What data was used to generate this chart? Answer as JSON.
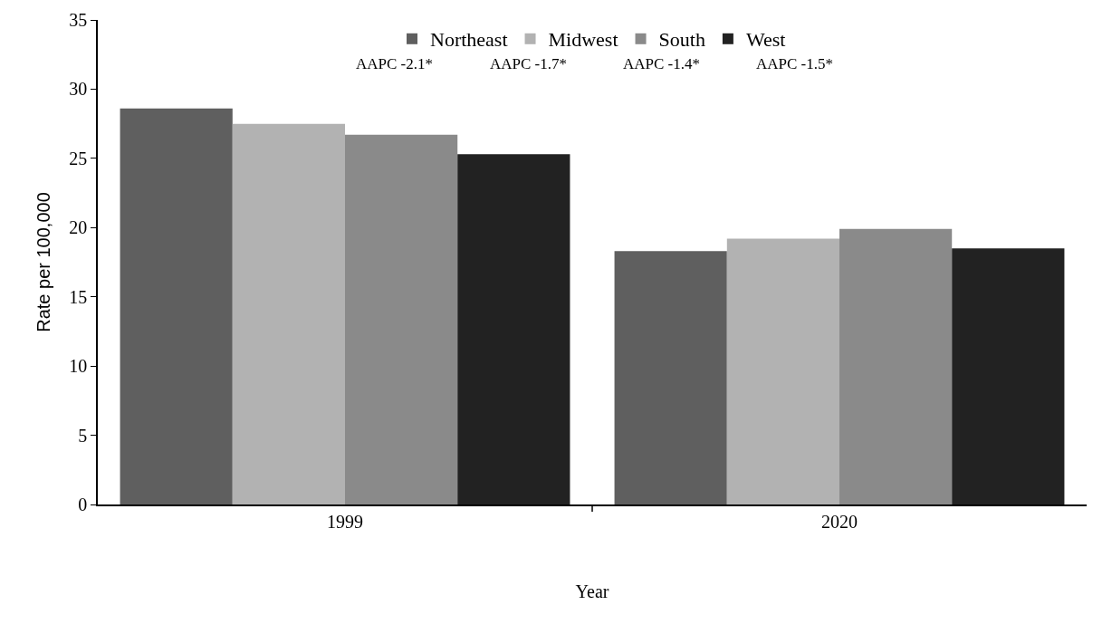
{
  "chart_data": {
    "type": "bar",
    "xlabel": "Year",
    "ylabel": "Rate per 100,000",
    "categories": [
      "1999",
      "2020"
    ],
    "series": [
      {
        "name": "Northeast",
        "color": "#5f5f5f",
        "values": [
          28.6,
          18.3
        ]
      },
      {
        "name": "Midwest",
        "color": "#b2b2b2",
        "values": [
          27.5,
          19.2
        ]
      },
      {
        "name": "South",
        "color": "#8a8a8a",
        "values": [
          26.7,
          19.9
        ]
      },
      {
        "name": "West",
        "color": "#222222",
        "values": [
          25.3,
          18.5
        ]
      }
    ],
    "annotations": [
      "AAPC -2.1*",
      "AAPC -1.7*",
      "AAPC -1.4*",
      "AAPC -1.5*"
    ],
    "ylim": [
      0,
      35
    ],
    "yticks": [
      0,
      5,
      10,
      15,
      20,
      25,
      30,
      35
    ],
    "legend": "top"
  }
}
